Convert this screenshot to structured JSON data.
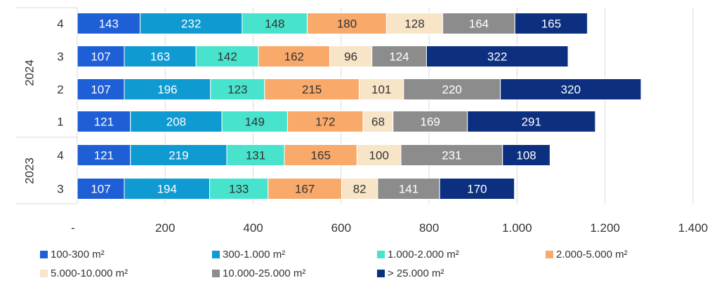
{
  "chart_data": {
    "type": "bar",
    "orientation": "horizontal",
    "stacked": true,
    "categories": [
      {
        "year": "2023",
        "quarter": "3"
      },
      {
        "year": "2023",
        "quarter": "4"
      },
      {
        "year": "2024",
        "quarter": "1"
      },
      {
        "year": "2024",
        "quarter": "2"
      },
      {
        "year": "2024",
        "quarter": "3"
      },
      {
        "year": "2024",
        "quarter": "4"
      }
    ],
    "groups": [
      "2023",
      "2024"
    ],
    "quarters": [
      "3",
      "4",
      "1",
      "2",
      "3",
      "4"
    ],
    "series": [
      {
        "name": "100-300 m²",
        "color": "#1f5fd6",
        "values": [
          107,
          121,
          121,
          107,
          107,
          143
        ]
      },
      {
        "name": "300-1.000 m²",
        "color": "#0f9ad1",
        "values": [
          194,
          219,
          208,
          196,
          163,
          232
        ]
      },
      {
        "name": "1.000-2.000 m²",
        "color": "#47e3cc",
        "values": [
          133,
          131,
          149,
          123,
          142,
          148
        ]
      },
      {
        "name": "2.000-5.000 m²",
        "color": "#f9a96a",
        "values": [
          167,
          165,
          172,
          215,
          162,
          180
        ]
      },
      {
        "name": "5.000-10.000 m²",
        "color": "#f8e4c7",
        "values": [
          82,
          100,
          68,
          101,
          96,
          128
        ]
      },
      {
        "name": "10.000-25.000 m²",
        "color": "#8c8c8c",
        "values": [
          141,
          231,
          169,
          220,
          124,
          164
        ]
      },
      {
        "name": "> 25.000 m²",
        "color": "#0d2f80",
        "values": [
          170,
          108,
          291,
          320,
          322,
          165
        ]
      }
    ],
    "x_ticks": [
      "-",
      "200",
      "400",
      "600",
      "800",
      "1.000",
      "1.200",
      "1.400"
    ],
    "xlim": [
      0,
      1400
    ],
    "grid": true,
    "legend_position": "bottom"
  }
}
